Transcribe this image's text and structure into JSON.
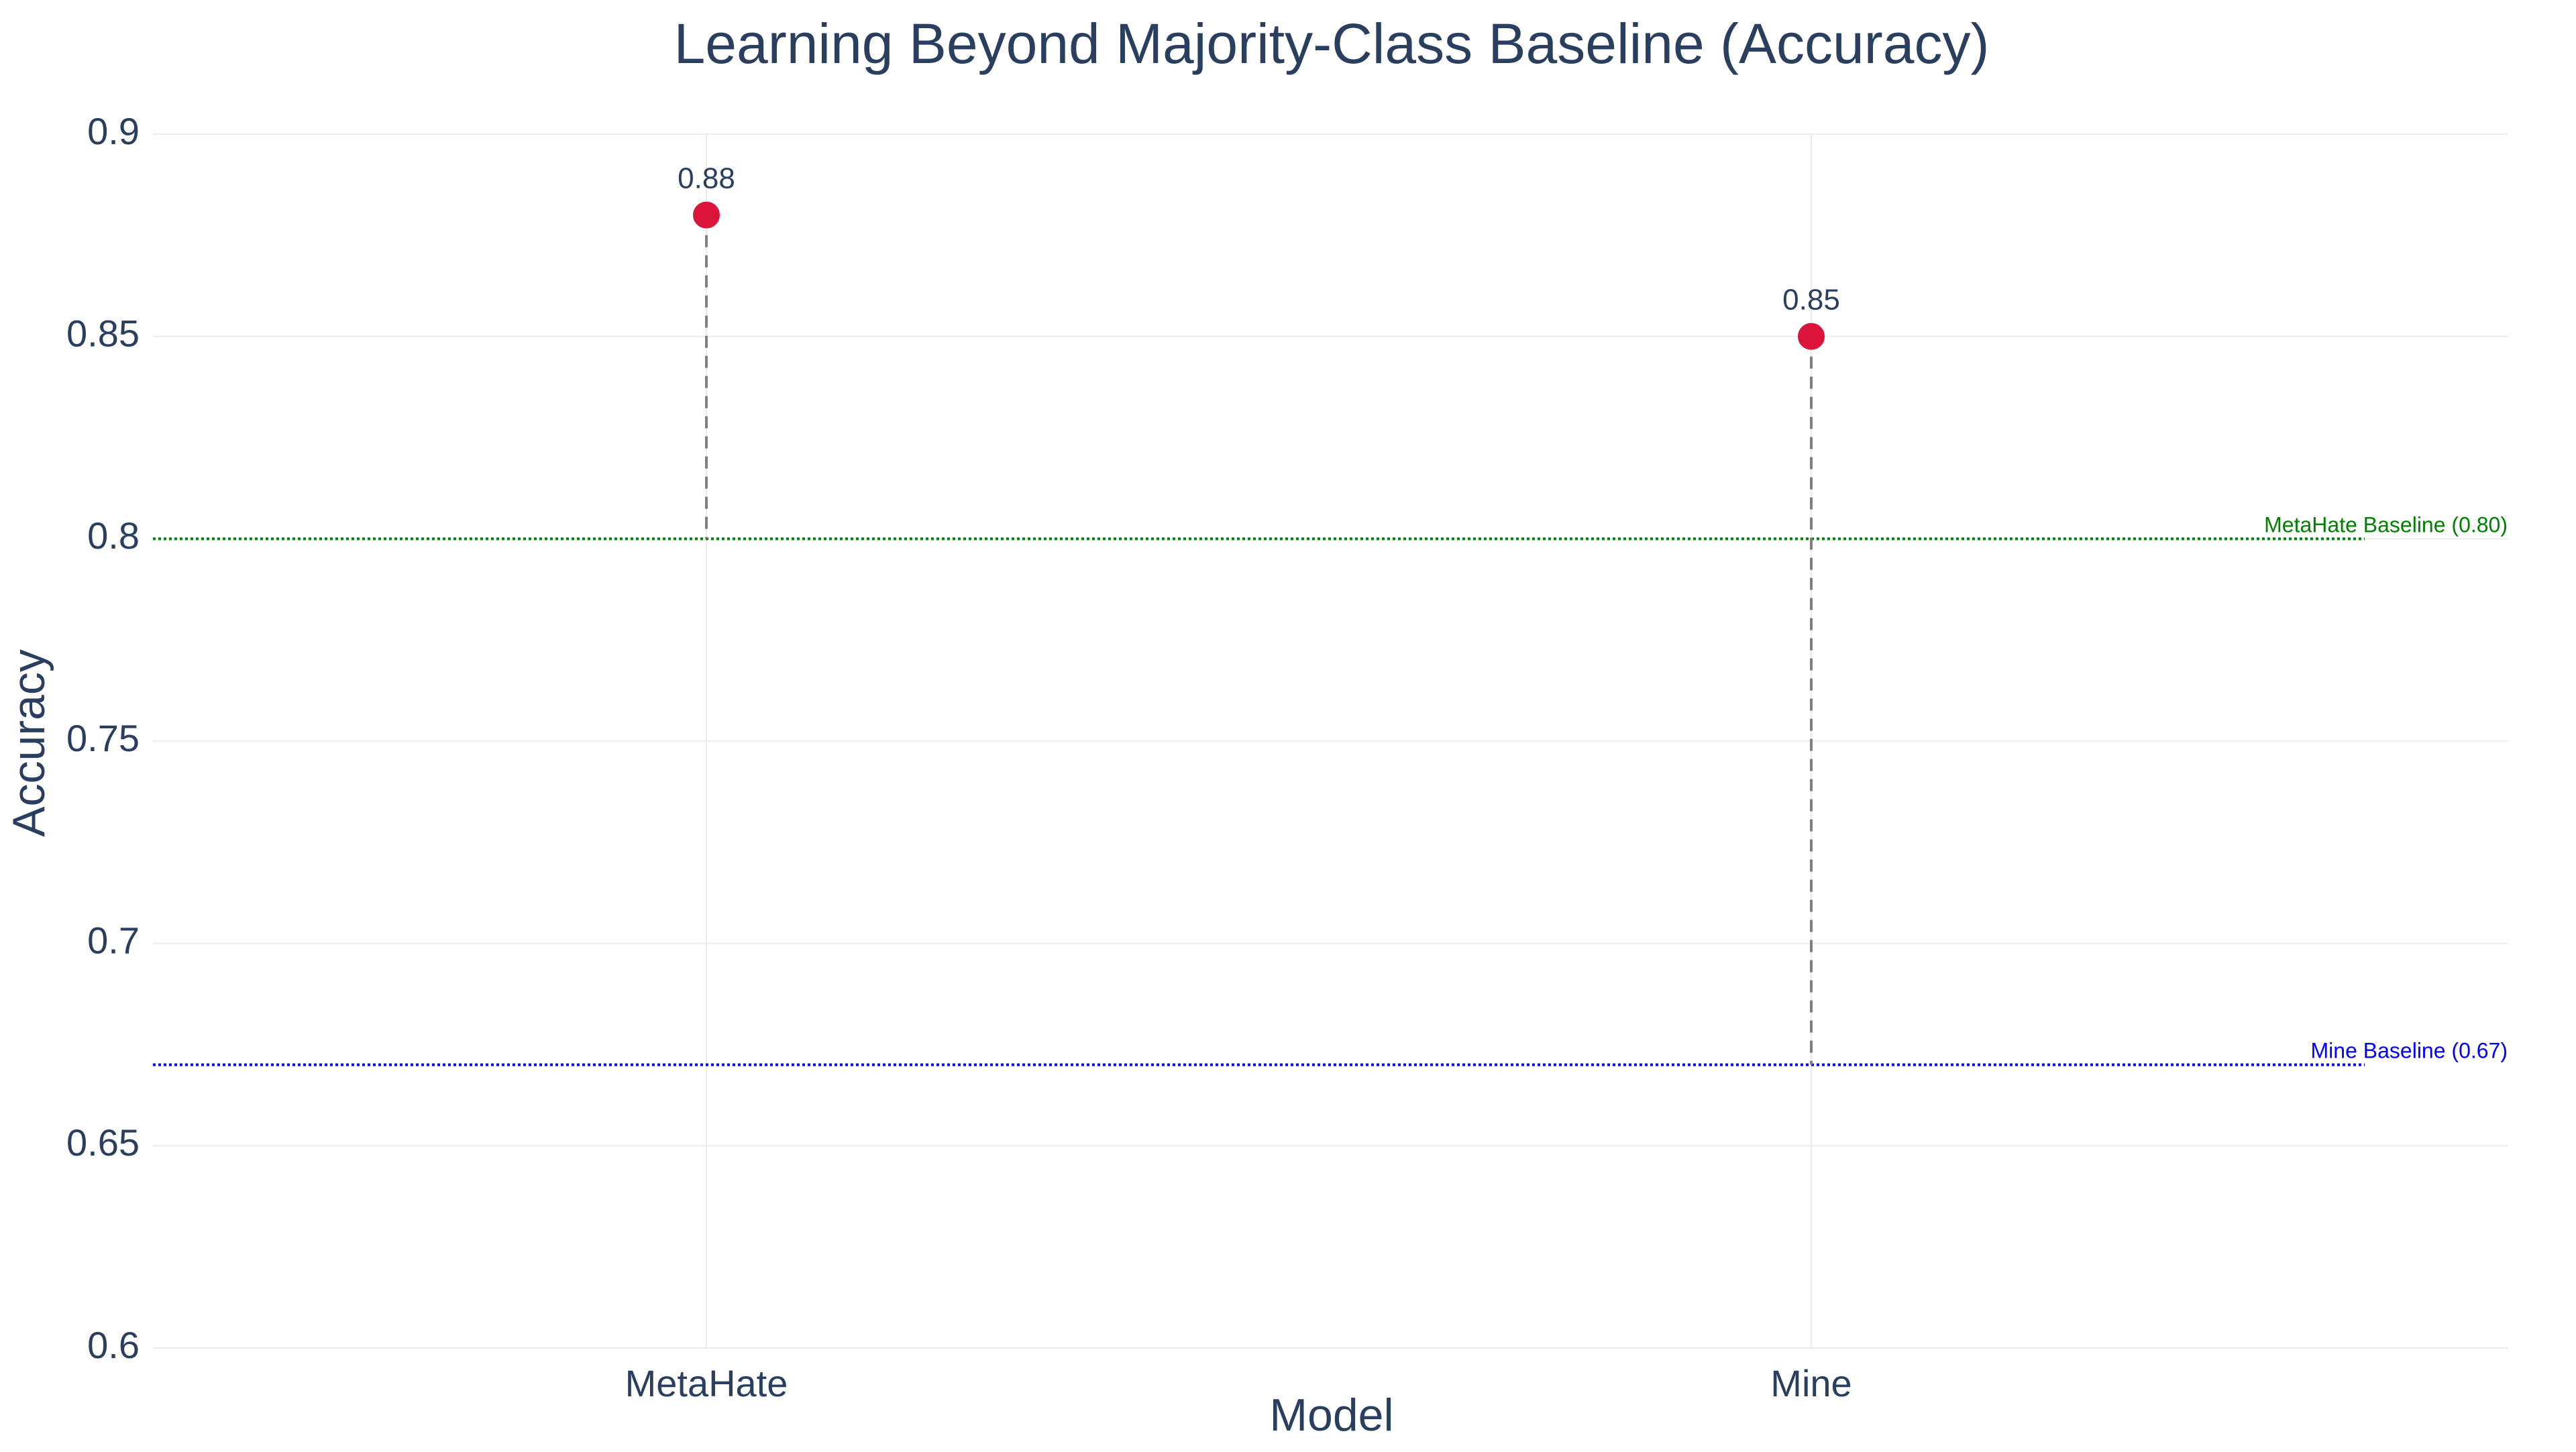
{
  "chart_data": {
    "type": "scatter",
    "title": "Learning Beyond Majority-Class Baseline (Accuracy)",
    "xlabel": "Model",
    "ylabel": "Accuracy",
    "categories": [
      "MetaHate",
      "Mine"
    ],
    "values": [
      0.88,
      0.85
    ],
    "value_labels": [
      "0.88",
      "0.85"
    ],
    "ylim": [
      0.6,
      0.9
    ],
    "yticks": [
      0.6,
      0.65,
      0.7,
      0.75,
      0.8,
      0.85,
      0.9
    ],
    "ytick_labels": [
      "0.6",
      "0.65",
      "0.7",
      "0.75",
      "0.8",
      "0.85",
      "0.9"
    ],
    "grid": true,
    "legend": "none",
    "baselines": [
      {
        "label": "MetaHate Baseline (0.80)",
        "value": 0.8,
        "category": "MetaHate",
        "color": "#008000"
      },
      {
        "label": "Mine Baseline (0.67)",
        "value": 0.67,
        "category": "Mine",
        "color": "#0000ff"
      }
    ],
    "colors": {
      "marker": "#dc143c",
      "stem": "#808080",
      "text": "#2a3f5f",
      "grid": "#ebebeb"
    }
  }
}
